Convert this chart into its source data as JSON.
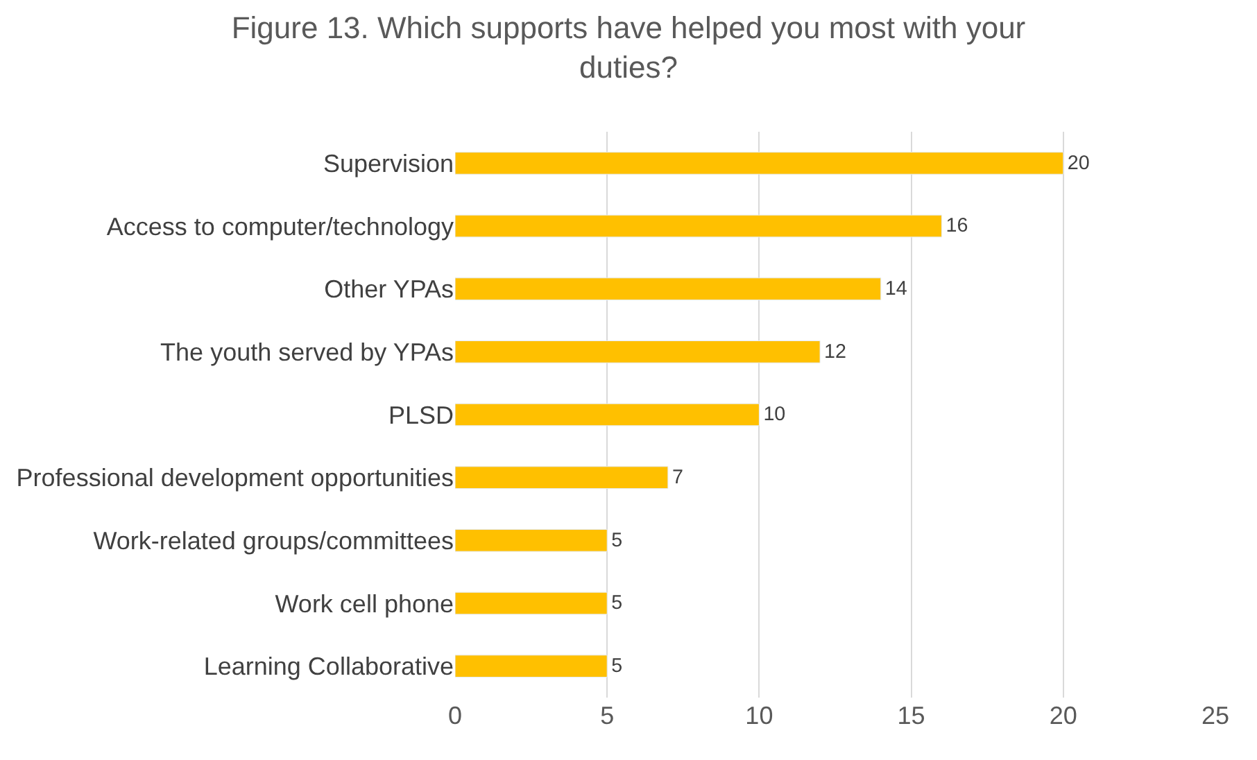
{
  "chart_data": {
    "type": "bar",
    "orientation": "horizontal",
    "title": "Figure 13. Which supports have helped you most with your duties?",
    "categories": [
      "Supervision",
      "Access to computer/technology",
      "Other YPAs",
      "The youth served by YPAs",
      "PLSD",
      "Professional development opportunities",
      "Work-related groups/committees",
      "Work cell phone",
      "Learning Collaborative"
    ],
    "values": [
      20,
      16,
      14,
      12,
      10,
      7,
      5,
      5,
      5
    ],
    "color": "#ffc000",
    "xlim": [
      0,
      25
    ],
    "xticks": [
      0,
      5,
      10,
      15,
      20,
      25
    ],
    "grid": "x",
    "data_labels": true,
    "legend": false
  }
}
